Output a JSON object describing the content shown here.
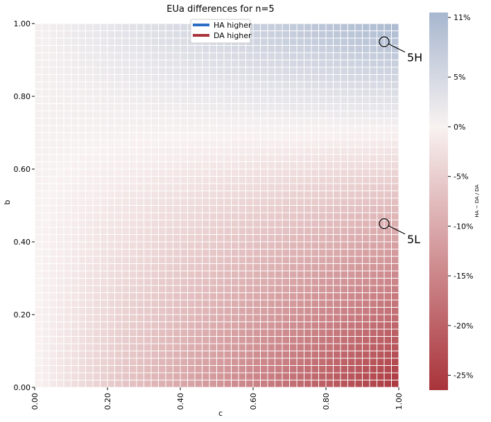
{
  "chart_data": {
    "type": "heatmap",
    "title": "EUa differences for n=5",
    "xlabel": "c",
    "ylabel": "b",
    "xlim": [
      0.0,
      1.0
    ],
    "ylim": [
      0.0,
      1.0
    ],
    "x_ticks": [
      "0.00",
      "0.20",
      "0.40",
      "0.60",
      "0.80",
      "1.00"
    ],
    "y_ticks": [
      "0.00",
      "0.20",
      "0.40",
      "0.60",
      "0.80",
      "1.00"
    ],
    "grid_size": 50,
    "value_range_percent": [
      -26.5,
      11.5
    ],
    "colormap": {
      "low": "#a9333a",
      "mid": "#f8f2f1",
      "high": "#a7b7cf"
    },
    "colorbar": {
      "label": "HA − DA / DA",
      "ticks": [
        "11%",
        "5%",
        "0%",
        "-5%",
        "-10%",
        "-15%",
        "-20%",
        "-25%"
      ]
    },
    "corner_values_percent": {
      "c0_b0": 0.0,
      "c1_b0": -26.0,
      "c0_b1": 0.5,
      "c1_b1": 11.0
    },
    "legend": {
      "placement": "top-center",
      "items": [
        {
          "label": "HA higher",
          "color": "#2b6cc4"
        },
        {
          "label": "DA higher",
          "color": "#a9333a"
        }
      ]
    },
    "annotations": [
      {
        "label": "5H",
        "c": 0.96,
        "b": 0.95
      },
      {
        "label": "5L",
        "c": 0.96,
        "b": 0.45
      }
    ]
  }
}
